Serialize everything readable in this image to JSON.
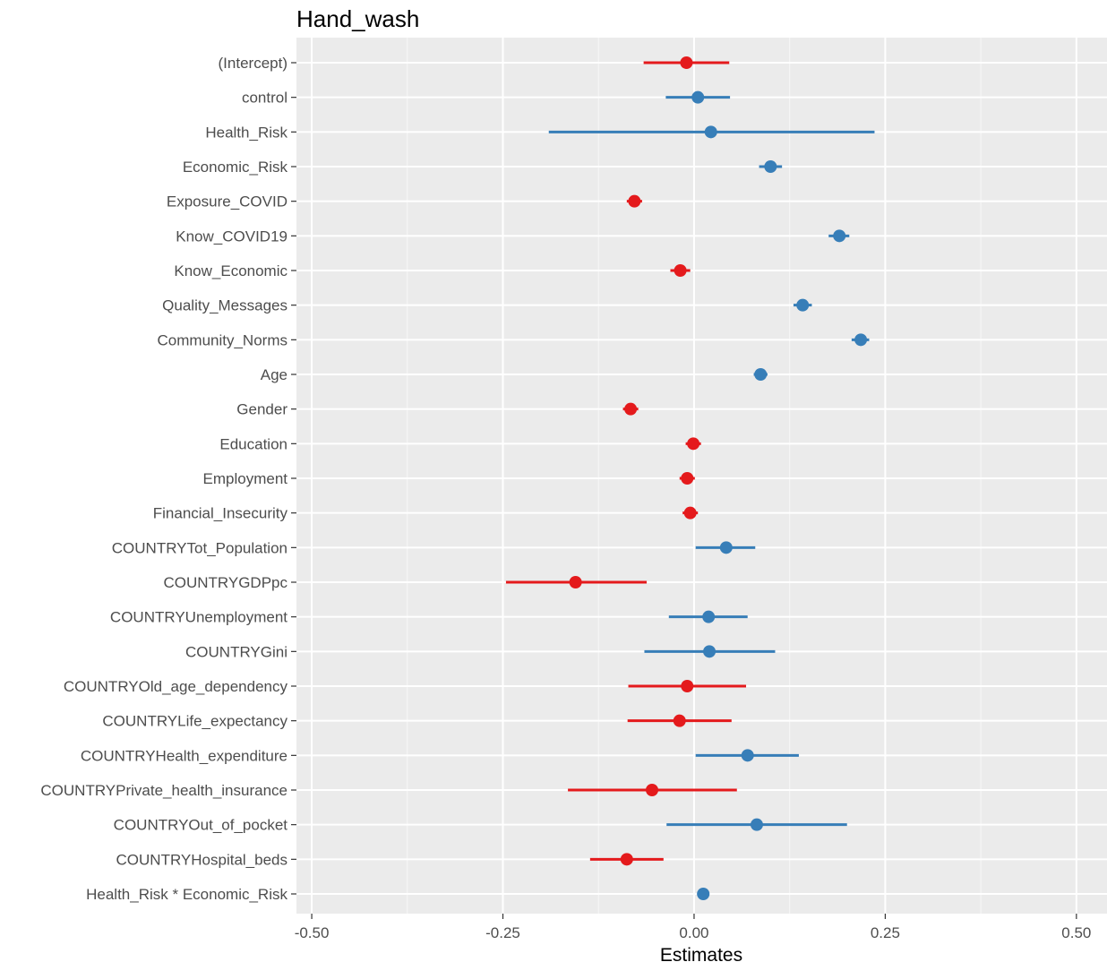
{
  "chart_data": {
    "type": "scatter",
    "title": "Hand_wash",
    "xlabel": "Estimates",
    "ylabel": "",
    "xlim": [
      -0.52,
      0.54
    ],
    "x_ticks": [
      -0.5,
      -0.25,
      0,
      0.25,
      0.5
    ],
    "x_tick_labels": [
      "-0.50",
      "-0.25",
      "0.00",
      "0.25",
      "0.50"
    ],
    "grid": true,
    "legend": "none",
    "colors": {
      "positive": "#377eb8",
      "negative": "#e41a1c"
    },
    "terms": [
      {
        "label": "(Intercept)",
        "estimate": -0.01,
        "low": -0.066,
        "high": 0.046,
        "sign": "negative"
      },
      {
        "label": "control",
        "estimate": 0.005,
        "low": -0.037,
        "high": 0.047,
        "sign": "positive"
      },
      {
        "label": "Health_Risk",
        "estimate": 0.022,
        "low": -0.19,
        "high": 0.236,
        "sign": "positive"
      },
      {
        "label": "Economic_Risk",
        "estimate": 0.1,
        "low": 0.085,
        "high": 0.115,
        "sign": "positive"
      },
      {
        "label": "Exposure_COVID",
        "estimate": -0.078,
        "low": -0.088,
        "high": -0.068,
        "sign": "negative"
      },
      {
        "label": "Know_COVID19",
        "estimate": 0.19,
        "low": 0.176,
        "high": 0.203,
        "sign": "positive"
      },
      {
        "label": "Know_Economic",
        "estimate": -0.018,
        "low": -0.031,
        "high": -0.005,
        "sign": "negative"
      },
      {
        "label": "Quality_Messages",
        "estimate": 0.142,
        "low": 0.13,
        "high": 0.154,
        "sign": "positive"
      },
      {
        "label": "Community_Norms",
        "estimate": 0.218,
        "low": 0.206,
        "high": 0.229,
        "sign": "positive"
      },
      {
        "label": "Age",
        "estimate": 0.087,
        "low": 0.078,
        "high": 0.096,
        "sign": "positive"
      },
      {
        "label": "Gender",
        "estimate": -0.083,
        "low": -0.093,
        "high": -0.073,
        "sign": "negative"
      },
      {
        "label": "Education",
        "estimate": -0.001,
        "low": -0.011,
        "high": 0.009,
        "sign": "negative"
      },
      {
        "label": "Employment",
        "estimate": -0.009,
        "low": -0.019,
        "high": 0.001,
        "sign": "negative"
      },
      {
        "label": "Financial_Insecurity",
        "estimate": -0.005,
        "low": -0.015,
        "high": 0.005,
        "sign": "negative"
      },
      {
        "label": "COUNTRYTot_Population",
        "estimate": 0.042,
        "low": 0.002,
        "high": 0.08,
        "sign": "positive"
      },
      {
        "label": "COUNTRYGDPpc",
        "estimate": -0.155,
        "low": -0.246,
        "high": -0.062,
        "sign": "negative"
      },
      {
        "label": "COUNTRYUnemployment",
        "estimate": 0.019,
        "low": -0.033,
        "high": 0.07,
        "sign": "positive"
      },
      {
        "label": "COUNTRYGini",
        "estimate": 0.02,
        "low": -0.065,
        "high": 0.106,
        "sign": "positive"
      },
      {
        "label": "COUNTRYOld_age_dependency",
        "estimate": -0.009,
        "low": -0.086,
        "high": 0.068,
        "sign": "negative"
      },
      {
        "label": "COUNTRYLife_expectancy",
        "estimate": -0.019,
        "low": -0.087,
        "high": 0.049,
        "sign": "negative"
      },
      {
        "label": "COUNTRYHealth_expenditure",
        "estimate": 0.07,
        "low": 0.002,
        "high": 0.137,
        "sign": "positive"
      },
      {
        "label": "COUNTRYPrivate_health_insurance",
        "estimate": -0.055,
        "low": -0.165,
        "high": 0.056,
        "sign": "negative"
      },
      {
        "label": "COUNTRYOut_of_pocket",
        "estimate": 0.082,
        "low": -0.036,
        "high": 0.2,
        "sign": "positive"
      },
      {
        "label": "COUNTRYHospital_beds",
        "estimate": -0.088,
        "low": -0.136,
        "high": -0.04,
        "sign": "negative"
      },
      {
        "label": "Health_Risk * Economic_Risk",
        "estimate": 0.012,
        "low": 0.004,
        "high": 0.02,
        "sign": "positive"
      }
    ]
  }
}
